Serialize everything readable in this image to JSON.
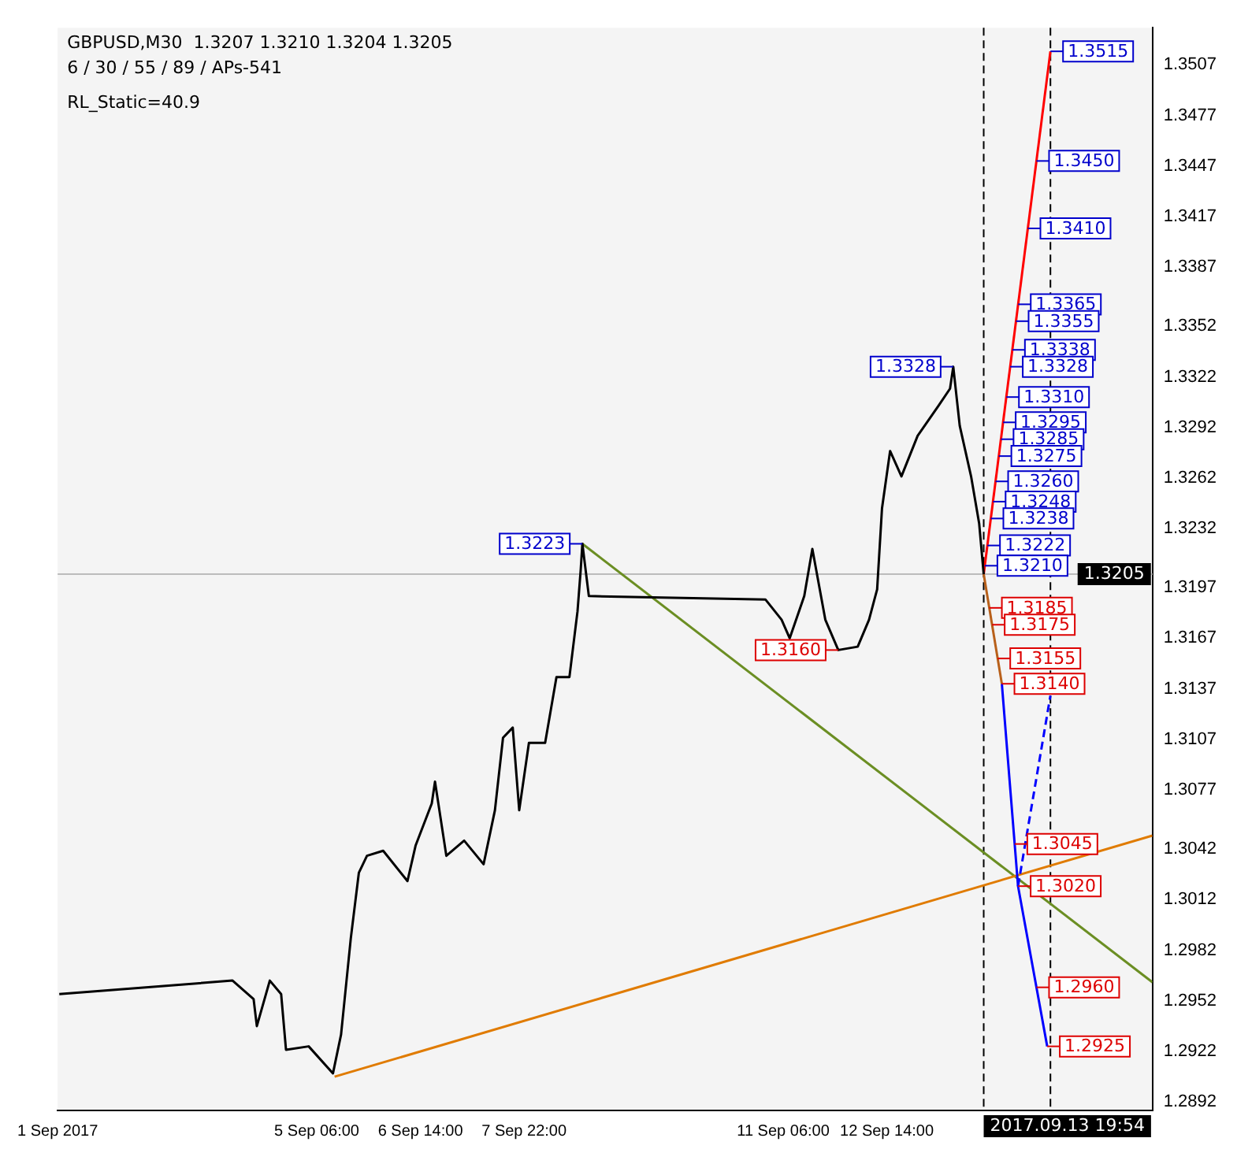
{
  "chart_data": {
    "type": "line",
    "title": "GBPUSD,M30  1.3207 1.3210 1.3204 1.3205",
    "subtitle": "6 / 30 / 55 / 89 / APs-541",
    "xlim": [
      "2017-09-01T22:00",
      "2017-09-16T00:00"
    ],
    "ylim": [
      1.2887,
      1.3529
    ],
    "xticks": [
      {
        "value": "2017-09-01T22:00",
        "label": "1 Sep 2017"
      },
      {
        "value": "2017-09-05T06:00",
        "label": "5 Sep 06:00"
      },
      {
        "value": "2017-09-06T14:00",
        "label": "6 Sep 14:00"
      },
      {
        "value": "2017-09-07T22:00",
        "label": "7 Sep 22:00"
      },
      {
        "value": "2017-09-11T06:00",
        "label": "11 Sep 06:00"
      },
      {
        "value": "2017-09-12T14:00",
        "label": "12 Sep 14:00"
      }
    ],
    "yticks": [
      1.3507,
      1.3477,
      1.3447,
      1.3417,
      1.3387,
      1.3352,
      1.3322,
      1.3292,
      1.3262,
      1.3232,
      1.3197,
      1.3167,
      1.3137,
      1.3107,
      1.3077,
      1.3042,
      1.3012,
      1.2982,
      1.2952,
      1.2922,
      1.2892
    ],
    "grid": false,
    "legend": false,
    "series": [
      {
        "color": "#000000",
        "x": [
          "2017-09-01T22:30",
          "2017-09-04T04:00",
          "2017-09-04T10:30",
          "2017-09-04T11:30",
          "2017-09-04T15:30",
          "2017-09-04T19:00",
          "2017-09-04T20:30",
          "2017-09-05T03:30",
          "2017-09-05T11:00",
          "2017-09-05T13:30",
          "2017-09-05T16:30",
          "2017-09-05T19:00",
          "2017-09-05T21:30",
          "2017-09-06T02:30",
          "2017-09-06T10:00",
          "2017-09-06T12:30",
          "2017-09-06T17:30",
          "2017-09-06T18:30",
          "2017-09-06T22:00",
          "2017-09-07T03:30",
          "2017-09-07T09:30",
          "2017-09-07T13:00",
          "2017-09-07T15:30",
          "2017-09-07T18:30",
          "2017-09-07T20:30",
          "2017-09-07T23:30",
          "2017-09-08T04:30",
          "2017-09-08T08:00",
          "2017-09-08T12:00",
          "2017-09-08T14:30",
          "2017-09-08T15:30",
          "2017-09-08T16:00",
          "2017-09-08T18:00",
          "2017-09-11T00:30",
          "2017-09-11T05:30",
          "2017-09-11T08:00",
          "2017-09-11T12:30",
          "2017-09-11T15:00",
          "2017-09-11T19:00",
          "2017-09-11T23:00",
          "2017-09-12T05:00",
          "2017-09-12T08:30",
          "2017-09-12T11:00",
          "2017-09-12T12:30",
          "2017-09-12T15:00",
          "2017-09-12T18:30",
          "2017-09-12T23:30",
          "2017-09-13T06:00",
          "2017-09-13T09:30",
          "2017-09-13T10:30",
          "2017-09-13T12:30",
          "2017-09-13T16:00",
          "2017-09-13T18:30",
          "2017-09-13T19:54"
        ],
        "values": [
          1.2956,
          1.2964,
          1.2953,
          1.2937,
          1.2964,
          1.2956,
          1.2923,
          1.2925,
          1.2909,
          1.2932,
          1.2989,
          1.3028,
          1.3038,
          1.3041,
          1.3023,
          1.3044,
          1.3069,
          1.3082,
          1.3038,
          1.3047,
          1.3033,
          1.3065,
          1.3108,
          1.3114,
          1.3065,
          1.3105,
          1.3105,
          1.3144,
          1.3144,
          1.3183,
          1.3208,
          1.3223,
          1.3192,
          1.319,
          1.3178,
          1.3167,
          1.3192,
          1.322,
          1.3178,
          1.316,
          1.3162,
          1.3178,
          1.3196,
          1.3244,
          1.3278,
          1.3263,
          1.3287,
          1.3305,
          1.3315,
          1.3328,
          1.3293,
          1.3263,
          1.3235,
          1.3205
        ]
      },
      {
        "color": "#ff0000",
        "x": [
          "2017-09-13T19:54",
          "2017-09-14T16:30"
        ],
        "values": [
          1.3205,
          1.3515
        ]
      },
      {
        "color": "#b8601a",
        "x": [
          "2017-09-13T19:54",
          "2017-09-14T01:30"
        ],
        "values": [
          1.3205,
          1.314
        ]
      },
      {
        "color": "#0000ff",
        "x": [
          "2017-09-14T01:30",
          "2017-09-14T06:30",
          "2017-09-14T15:30"
        ],
        "values": [
          1.314,
          1.302,
          1.2925
        ]
      },
      {
        "color": "#0000ff",
        "line_style": "dashed",
        "x": [
          "2017-09-14T06:30",
          "2017-09-14T16:30"
        ],
        "values": [
          1.302,
          1.3133
        ]
      },
      {
        "color": "#e07b00",
        "x": [
          "2017-09-05T11:30",
          "2017-09-16T00:00"
        ],
        "values": [
          1.2907,
          1.305
        ]
      },
      {
        "color": "#6b8e23",
        "x": [
          "2017-09-08T16:00",
          "2017-09-16T00:00"
        ],
        "values": [
          1.3223,
          1.2963
        ]
      }
    ],
    "ref_lines": [
      {
        "axis": "y",
        "value": 1.3205,
        "label": "1.3205",
        "color": "#bbbbbb"
      },
      {
        "axis": "x",
        "value": "2017-09-13T19:54",
        "label": "2017.09.13 19:54",
        "color": "#000000",
        "line_style": "dashed"
      },
      {
        "axis": "x",
        "value": "2017-09-14T16:30",
        "color": "#000000",
        "line_style": "dashed"
      }
    ],
    "annotations": [
      "RL_Static=40.9",
      {
        "text": "1.3328",
        "x": "2017-09-13T10:30",
        "y": 1.3328
      },
      {
        "text": "1.3223",
        "x": "2017-09-08T16:00",
        "y": 1.3223
      },
      {
        "text": "1.3160",
        "x": "2017-09-11T23:00",
        "y": 1.316
      },
      {
        "text": "1.3515",
        "x": "2017-09-14T16:30",
        "y": 1.3515
      },
      {
        "text": "1.3450",
        "x": "2017-09-14T12:11",
        "y": 1.345
      },
      {
        "text": "1.3410",
        "x": "2017-09-14T09:31",
        "y": 1.341
      },
      {
        "text": "1.3365",
        "x": "2017-09-14T06:32",
        "y": 1.3365
      },
      {
        "text": "1.3355",
        "x": "2017-09-14T05:52",
        "y": 1.3355
      },
      {
        "text": "1.3338",
        "x": "2017-09-14T04:44",
        "y": 1.3338
      },
      {
        "text": "1.3328",
        "x": "2017-09-14T04:04",
        "y": 1.3328
      },
      {
        "text": "1.3310",
        "x": "2017-09-14T02:53",
        "y": 1.331
      },
      {
        "text": "1.3295",
        "x": "2017-09-14T01:53",
        "y": 1.3295
      },
      {
        "text": "1.3285",
        "x": "2017-09-14T01:13",
        "y": 1.3285
      },
      {
        "text": "1.3275",
        "x": "2017-09-14T00:33",
        "y": 1.3275
      },
      {
        "text": "1.3260",
        "x": "2017-09-13T23:33",
        "y": 1.326
      },
      {
        "text": "1.3248",
        "x": "2017-09-13T22:46",
        "y": 1.3248
      },
      {
        "text": "1.3238",
        "x": "2017-09-13T22:05",
        "y": 1.3238
      },
      {
        "text": "1.3222",
        "x": "2017-09-13T21:02",
        "y": 1.3222
      },
      {
        "text": "1.3210",
        "x": "2017-09-13T20:14",
        "y": 1.321
      },
      {
        "text": "1.3185",
        "x": "2017-09-13T21:37",
        "y": 1.3185
      },
      {
        "text": "1.3175",
        "x": "2017-09-13T22:29",
        "y": 1.3175
      },
      {
        "text": "1.3155",
        "x": "2017-09-14T00:12",
        "y": 1.3155
      },
      {
        "text": "1.3140",
        "x": "2017-09-14T01:30",
        "y": 1.314
      },
      {
        "text": "1.3045",
        "x": "2017-09-14T05:28",
        "y": 1.3045
      },
      {
        "text": "1.3020",
        "x": "2017-09-14T06:30",
        "y": 1.302
      },
      {
        "text": "1.2960",
        "x": "2017-09-14T12:11",
        "y": 1.296
      },
      {
        "text": "1.2925",
        "x": "2017-09-14T15:30",
        "y": 1.2925
      }
    ]
  }
}
